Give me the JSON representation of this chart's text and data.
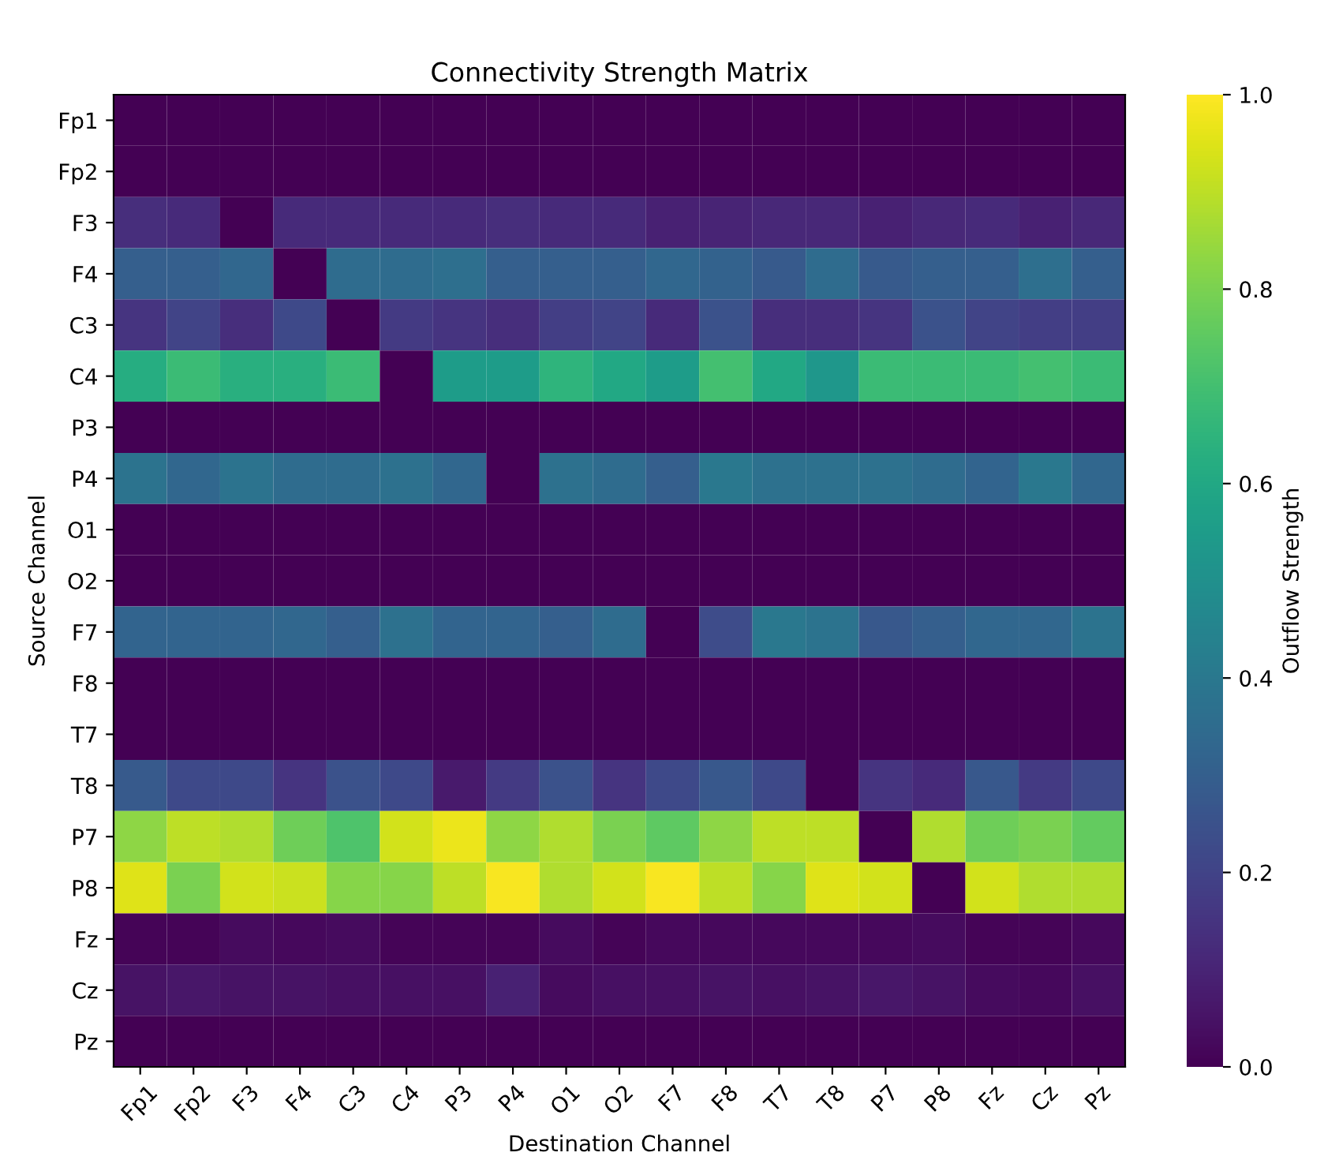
{
  "chart_data": {
    "type": "heatmap",
    "title": "Connectivity Strength Matrix",
    "xlabel": "Destination Channel",
    "ylabel": "Source Channel",
    "clabel": "Outflow Strength",
    "categories": [
      "Fp1",
      "Fp2",
      "F3",
      "F4",
      "C3",
      "C4",
      "P3",
      "P4",
      "O1",
      "O2",
      "F7",
      "F8",
      "T7",
      "T8",
      "P7",
      "P8",
      "Fz",
      "Cz",
      "Pz"
    ],
    "y_categories": [
      "Fp1",
      "Fp2",
      "F3",
      "F4",
      "C3",
      "C4",
      "P3",
      "P4",
      "O1",
      "O2",
      "F7",
      "F8",
      "T7",
      "T8",
      "P7",
      "P8",
      "Fz",
      "Cz",
      "Pz"
    ],
    "cells": [
      [
        0,
        0,
        0,
        0,
        0,
        0,
        0,
        0,
        0,
        0,
        0,
        0,
        0,
        0,
        0,
        0,
        0,
        0,
        0
      ],
      [
        0,
        0,
        0,
        0,
        0,
        0,
        0,
        0,
        0,
        0,
        0,
        0,
        0,
        0,
        0,
        0,
        0,
        0,
        0
      ],
      [
        0.13,
        0.12,
        0,
        0.12,
        0.12,
        0.12,
        0.12,
        0.13,
        0.12,
        0.12,
        0.09,
        0.1,
        0.11,
        0.11,
        0.09,
        0.11,
        0.12,
        0.09,
        0.11
      ],
      [
        0.3,
        0.3,
        0.33,
        0,
        0.35,
        0.35,
        0.36,
        0.3,
        0.3,
        0.3,
        0.33,
        0.31,
        0.28,
        0.35,
        0.28,
        0.3,
        0.3,
        0.36,
        0.3
      ],
      [
        0.15,
        0.2,
        0.13,
        0.22,
        0,
        0.17,
        0.15,
        0.13,
        0.18,
        0.2,
        0.12,
        0.25,
        0.13,
        0.13,
        0.15,
        0.25,
        0.2,
        0.18,
        0.18
      ],
      [
        0.62,
        0.68,
        0.63,
        0.63,
        0.68,
        0,
        0.55,
        0.55,
        0.65,
        0.6,
        0.55,
        0.7,
        0.6,
        0.53,
        0.68,
        0.68,
        0.68,
        0.7,
        0.68
      ],
      [
        0,
        0,
        0,
        0,
        0,
        0,
        0,
        0,
        0,
        0,
        0,
        0,
        0,
        0,
        0,
        0,
        0,
        0,
        0
      ],
      [
        0.38,
        0.33,
        0.38,
        0.35,
        0.35,
        0.37,
        0.33,
        0,
        0.37,
        0.35,
        0.3,
        0.4,
        0.37,
        0.37,
        0.37,
        0.35,
        0.32,
        0.4,
        0.33
      ],
      [
        0,
        0,
        0,
        0,
        0,
        0,
        0,
        0,
        0,
        0,
        0,
        0,
        0,
        0,
        0,
        0,
        0,
        0,
        0
      ],
      [
        0,
        0,
        0,
        0,
        0,
        0,
        0,
        0,
        0,
        0,
        0,
        0,
        0,
        0,
        0,
        0,
        0,
        0,
        0
      ],
      [
        0.32,
        0.32,
        0.32,
        0.33,
        0.3,
        0.37,
        0.32,
        0.32,
        0.3,
        0.35,
        0,
        0.23,
        0.4,
        0.38,
        0.27,
        0.3,
        0.33,
        0.33,
        0.38
      ],
      [
        0,
        0,
        0,
        0,
        0,
        0,
        0,
        0,
        0,
        0,
        0,
        0,
        0,
        0,
        0,
        0,
        0,
        0,
        0
      ],
      [
        0,
        0,
        0,
        0,
        0,
        0,
        0,
        0,
        0,
        0,
        0,
        0,
        0,
        0,
        0,
        0,
        0,
        0,
        0
      ],
      [
        0.28,
        0.22,
        0.22,
        0.15,
        0.25,
        0.22,
        0.07,
        0.17,
        0.25,
        0.15,
        0.22,
        0.27,
        0.22,
        0,
        0.15,
        0.12,
        0.27,
        0.17,
        0.22
      ],
      [
        0.83,
        0.9,
        0.88,
        0.78,
        0.72,
        0.93,
        0.97,
        0.83,
        0.88,
        0.8,
        0.75,
        0.83,
        0.9,
        0.9,
        0,
        0.88,
        0.78,
        0.8,
        0.76
      ],
      [
        0.95,
        0.8,
        0.93,
        0.92,
        0.82,
        0.82,
        0.9,
        0.99,
        0.88,
        0.93,
        0.99,
        0.9,
        0.82,
        0.95,
        0.93,
        0,
        0.93,
        0.88,
        0.88
      ],
      [
        0.01,
        0.01,
        0.03,
        0.02,
        0.03,
        0.01,
        0.01,
        0.01,
        0.03,
        0.01,
        0.02,
        0.02,
        0.02,
        0.02,
        0.02,
        0.03,
        0.01,
        0.01,
        0.02
      ],
      [
        0.05,
        0.06,
        0.05,
        0.05,
        0.04,
        0.04,
        0.04,
        0.09,
        0.03,
        0.04,
        0.04,
        0.05,
        0.04,
        0.05,
        0.06,
        0.05,
        0.03,
        0.02,
        0.04
      ],
      [
        0,
        0,
        0,
        0,
        0,
        0,
        0,
        0,
        0,
        0,
        0,
        0,
        0,
        0,
        0,
        0,
        0,
        0,
        0
      ]
    ],
    "clim": [
      0,
      1
    ],
    "cticks": [
      {
        "value": 0,
        "label": "0.0"
      },
      {
        "value": 0.2,
        "label": "0.2"
      },
      {
        "value": 0.4,
        "label": "0.4"
      },
      {
        "value": 0.6,
        "label": "0.6"
      },
      {
        "value": 0.8,
        "label": "0.8"
      },
      {
        "value": 1,
        "label": "1.0"
      }
    ]
  }
}
